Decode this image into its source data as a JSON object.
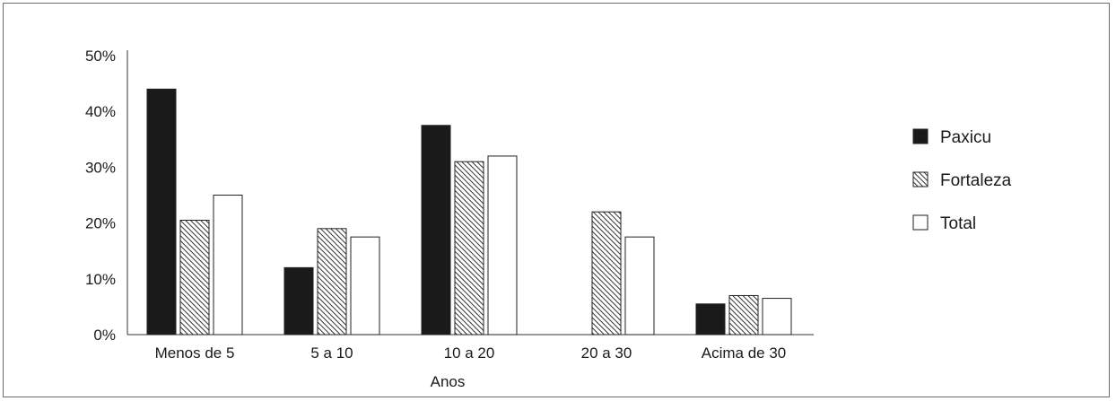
{
  "chart_data": {
    "type": "bar",
    "title": "",
    "xlabel": "Anos",
    "ylabel": "",
    "categories": [
      "Menos de 5",
      "5 a 10",
      "10 a 20",
      "20 a 30",
      "Acima de 30"
    ],
    "series": [
      {
        "name": "Paxicu",
        "values": [
          44,
          12,
          37.5,
          0,
          5.5
        ],
        "style": "solid",
        "color": "#1a1a1a"
      },
      {
        "name": "Fortaleza",
        "values": [
          20.5,
          19,
          31,
          22,
          7
        ],
        "style": "hatched",
        "color": "#555555"
      },
      {
        "name": "Total",
        "values": [
          25,
          17.5,
          32,
          17.5,
          6.5
        ],
        "style": "outline",
        "color": "#ffffff"
      }
    ],
    "ylim": [
      0,
      50
    ],
    "yticks": [
      0,
      10,
      20,
      30,
      40,
      50
    ],
    "ytick_labels": [
      "0%",
      "10%",
      "20%",
      "30%",
      "40%",
      "50%"
    ],
    "grid": false,
    "legend_position": "right"
  }
}
